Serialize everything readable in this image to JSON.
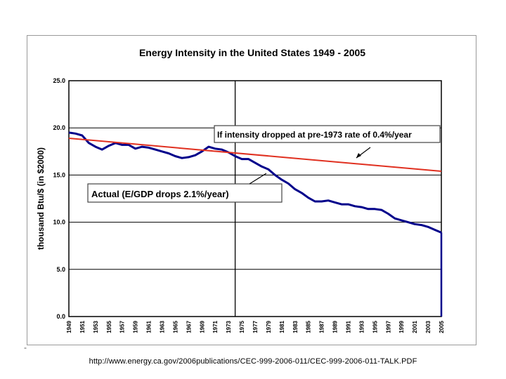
{
  "chart_data": {
    "type": "line",
    "title": "Energy Intensity in the United States 1949 - 2005",
    "xlabel": "",
    "ylabel": "thousand Btu/$ (in $2000)",
    "ylim": [
      0,
      25
    ],
    "xlim": [
      1949,
      2005
    ],
    "yticks": [
      "0.0",
      "5.0",
      "10.0",
      "15.0",
      "20.0",
      "25.0"
    ],
    "xticks": [
      "1949",
      "1951",
      "1953",
      "1955",
      "1957",
      "1959",
      "1961",
      "1963",
      "1965",
      "1967",
      "1969",
      "1971",
      "1973",
      "1975",
      "1977",
      "1979",
      "1981",
      "1983",
      "1985",
      "1987",
      "1989",
      "1991",
      "1993",
      "1995",
      "1997",
      "1999",
      "2001",
      "2003",
      "2005"
    ],
    "series": [
      {
        "name": "Actual (E/GDP drops 2.1%/year)",
        "color": "#00008b",
        "x": [
          1949,
          1950,
          1951,
          1952,
          1953,
          1954,
          1955,
          1956,
          1957,
          1958,
          1959,
          1960,
          1961,
          1962,
          1963,
          1964,
          1965,
          1966,
          1967,
          1968,
          1969,
          1970,
          1971,
          1972,
          1973,
          1974,
          1975,
          1976,
          1977,
          1978,
          1979,
          1980,
          1981,
          1982,
          1983,
          1984,
          1985,
          1986,
          1987,
          1988,
          1989,
          1990,
          1991,
          1992,
          1993,
          1994,
          1995,
          1996,
          1997,
          1998,
          1999,
          2000,
          2001,
          2002,
          2003,
          2004,
          2005
        ],
        "values": [
          19.5,
          19.4,
          19.2,
          18.4,
          18.0,
          17.7,
          18.1,
          18.4,
          18.2,
          18.2,
          17.8,
          18.0,
          17.9,
          17.7,
          17.5,
          17.3,
          17.0,
          16.8,
          16.9,
          17.1,
          17.5,
          18.0,
          17.8,
          17.7,
          17.4,
          17.0,
          16.7,
          16.7,
          16.3,
          15.9,
          15.6,
          15.0,
          14.5,
          14.1,
          13.5,
          13.1,
          12.6,
          12.2,
          12.2,
          12.3,
          12.1,
          11.9,
          11.9,
          11.7,
          11.6,
          11.4,
          11.4,
          11.3,
          10.9,
          10.4,
          10.2,
          10.0,
          9.8,
          9.7,
          9.5,
          9.2,
          8.9
        ]
      },
      {
        "name": "If intensity dropped at pre-1973  rate of  0.4%/year",
        "color": "#e03020",
        "x": [
          1949,
          2005
        ],
        "values": [
          18.9,
          15.4
        ]
      }
    ],
    "reference_line": {
      "x": 1974,
      "color": "#000000"
    },
    "annotations": [
      {
        "text": "If intensity dropped at pre-1973  rate of  0.4%/year"
      },
      {
        "text": "Actual (E/GDP drops 2.1%/year)"
      }
    ]
  },
  "footer": {
    "dash": "-",
    "source_url": "http://www.energy.ca.gov/2006publications/CEC-999-2006-011/CEC-999-2006-011-TALK.PDF"
  }
}
